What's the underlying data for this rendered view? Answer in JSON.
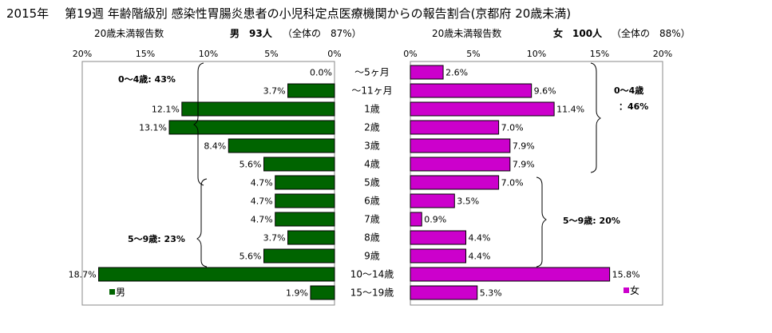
{
  "title": "2015年　 第19週 年齢階級別 感染性胃腸炎患者の小児科定点医療機関からの報告割合(京都府 20歳未満)",
  "chart_data": {
    "type": "bar",
    "categories": [
      "～5ヶ月",
      "～11ヶ月",
      "1歳",
      "2歳",
      "3歳",
      "4歳",
      "5歳",
      "6歳",
      "7歳",
      "8歳",
      "9歳",
      "10～14歳",
      "15～19歳"
    ],
    "series": [
      {
        "name": "男",
        "color": "#006400",
        "values": [
          0.0,
          3.7,
          12.1,
          13.1,
          8.4,
          5.6,
          4.7,
          4.7,
          4.7,
          3.7,
          5.6,
          18.7,
          1.9
        ],
        "value_labels": [
          "0.0%",
          "3.7%",
          "12.1%",
          "13.1%",
          "8.4%",
          "5.6%",
          "4.7%",
          "4.7%",
          "4.7%",
          "3.7%",
          "5.6%",
          "18.7%",
          "1.9%"
        ]
      },
      {
        "name": "女",
        "color": "#CC00CC",
        "values": [
          2.6,
          9.6,
          11.4,
          7.0,
          7.9,
          7.9,
          7.0,
          3.5,
          0.9,
          4.4,
          4.4,
          15.8,
          5.3
        ],
        "value_labels": [
          "2.6%",
          "9.6%",
          "11.4%",
          "7.0%",
          "7.9%",
          "7.9%",
          "7.0%",
          "3.5%",
          "0.9%",
          "4.4%",
          "4.4%",
          "15.8%",
          "5.3%"
        ]
      }
    ],
    "xlim": [
      0,
      20
    ],
    "ticks": [
      0,
      5,
      10,
      15,
      20
    ],
    "tick_labels_male": [
      "20%",
      "15%",
      "10%",
      "5%",
      "0%"
    ],
    "tick_labels_female": [
      "0%",
      "5%",
      "10%",
      "15%",
      "20%"
    ],
    "panel_male": {
      "axis_title": "20歳未満報告数",
      "group_label": "男　93人",
      "share_label": "（全体の　87%）",
      "legend": "男"
    },
    "panel_female": {
      "axis_title": "20歳未満報告数",
      "group_label": "女　100人",
      "share_label": "（全体の　88%）",
      "legend": "女"
    },
    "annotations": {
      "male_0_4": "0～4歳: 43%",
      "male_5_9": "5～9歳: 23%",
      "female_0_4_line1": "0～4歳",
      "female_0_4_line2": "：46%",
      "female_5_9": "5～9歳: 20%"
    },
    "grid": false
  }
}
